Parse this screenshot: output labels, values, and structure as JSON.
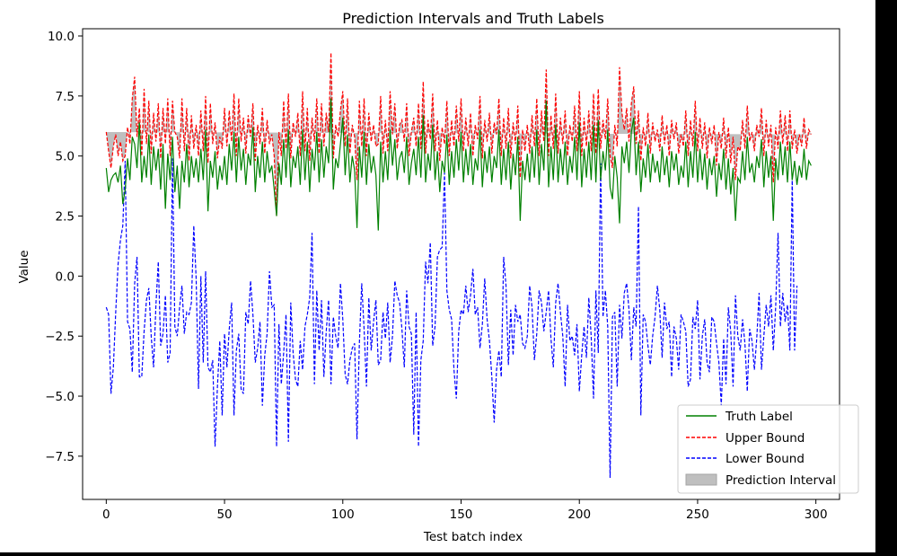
{
  "chart_data": {
    "type": "line",
    "title": "Prediction Intervals and Truth Labels",
    "xlabel": "Test batch index",
    "ylabel": "Value",
    "xlim": [
      -10,
      310
    ],
    "ylim": [
      -9.3,
      10.3
    ],
    "xticks": [
      0,
      50,
      100,
      150,
      200,
      250,
      300
    ],
    "xtick_labels": [
      "0",
      "50",
      "100",
      "150",
      "200",
      "250",
      "300"
    ],
    "yticks": [
      10.0,
      7.5,
      5.0,
      2.5,
      0.0,
      -2.5,
      -5.0,
      -7.5
    ],
    "ytick_labels": [
      "10.0",
      "7.5",
      "5.0",
      "2.5",
      "0.0",
      "−2.5",
      "−5.0",
      "−7.5"
    ],
    "grid": false,
    "legend_placement": "bottom-right",
    "n_points": 300,
    "x_start": 0,
    "x_step": 1,
    "series": [
      {
        "name": "Truth Label",
        "color": "#008000",
        "style": "solid",
        "values": [
          4.5,
          3.5,
          4.0,
          4.2,
          4.3,
          3.9,
          4.6,
          3.0,
          3.6,
          4.9,
          4.0,
          5.8,
          5.5,
          4.5,
          6.4,
          3.9,
          5.0,
          4.1,
          5.9,
          3.8,
          5.4,
          4.4,
          5.3,
          3.6,
          5.5,
          2.8,
          5.1,
          4.0,
          5.8,
          3.5,
          4.6,
          2.8,
          4.8,
          3.9,
          5.5,
          3.7,
          5.0,
          4.1,
          4.9,
          3.9,
          5.3,
          4.0,
          6.1,
          2.7,
          4.8,
          4.1,
          5.2,
          3.6,
          4.6,
          4.0,
          5.0,
          3.8,
          5.5,
          4.4,
          6.0,
          3.9,
          5.8,
          4.4,
          5.3,
          3.8,
          5.1,
          4.6,
          6.2,
          3.5,
          5.0,
          4.1,
          5.6,
          3.9,
          5.2,
          4.3,
          4.6,
          3.6,
          2.5,
          4.7,
          3.8,
          5.7,
          4.1,
          6.1,
          3.7,
          5.0,
          4.5,
          5.4,
          3.8,
          6.1,
          4.0,
          5.6,
          3.5,
          5.3,
          4.4,
          6.0,
          3.9,
          5.7,
          4.1,
          5.4,
          4.7,
          7.4,
          3.6,
          4.9,
          4.5,
          5.5,
          6.6,
          4.2,
          5.9,
          3.9,
          5.0,
          4.4,
          2.0,
          5.4,
          4.1,
          6.0,
          3.8,
          5.5,
          4.3,
          5.0,
          4.2,
          1.9,
          5.6,
          3.9,
          5.2,
          4.0,
          6.1,
          4.6,
          5.7,
          4.0,
          4.9,
          5.2,
          4.3,
          5.8,
          3.8,
          4.7,
          5.3,
          4.2,
          5.8,
          4.1,
          6.7,
          3.9,
          5.1,
          4.4,
          6.3,
          4.0,
          5.2,
          3.5,
          4.8,
          4.3,
          5.9,
          3.8,
          5.2,
          4.1,
          5.7,
          4.4,
          6.0,
          3.9,
          5.3,
          4.2,
          5.5,
          3.8,
          4.9,
          4.4,
          6.1,
          3.7,
          5.2,
          4.3,
          5.4,
          3.9,
          5.0,
          4.5,
          6.1,
          3.8,
          5.3,
          4.0,
          5.6,
          3.6,
          5.1,
          4.2,
          5.8,
          2.3,
          4.8,
          4.0,
          5.1,
          3.9,
          5.4,
          4.1,
          6.1,
          3.8,
          5.5,
          4.4,
          7.3,
          3.7,
          5.4,
          4.0,
          6.3,
          3.9,
          5.3,
          4.2,
          5.6,
          3.8,
          5.0,
          4.3,
          5.8,
          4.0,
          6.4,
          3.7,
          5.3,
          4.1,
          5.6,
          4.0,
          6.3,
          3.9,
          6.5,
          4.0,
          5.2,
          4.4,
          6.1,
          3.7,
          3.2,
          5.0,
          4.1,
          2.2,
          5.4,
          4.7,
          5.6,
          4.3,
          6.0,
          6.6,
          4.2,
          5.6,
          3.5,
          4.9,
          4.1,
          5.5,
          3.9,
          5.1,
          4.3,
          4.8,
          3.9,
          5.4,
          4.2,
          5.0,
          3.7,
          5.2,
          4.4,
          5.1,
          3.8,
          4.6,
          4.1,
          5.6,
          3.7,
          5.2,
          4.1,
          6.0,
          3.9,
          5.3,
          4.0,
          5.1,
          3.6,
          4.9,
          4.2,
          5.0,
          3.3,
          4.7,
          4.0,
          5.3,
          3.6,
          4.9,
          3.4,
          4.5,
          2.3,
          4.1,
          3.9,
          5.2,
          4.0,
          5.8,
          4.3,
          4.7,
          3.9,
          5.0,
          4.5,
          5.7,
          3.7,
          5.2,
          4.1,
          5.0,
          2.3,
          4.9,
          4.0,
          5.6,
          4.2,
          5.4,
          3.9,
          5.6,
          4.0,
          4.8,
          3.8,
          4.6,
          4.1,
          5.3,
          4.0,
          4.8,
          4.6
        ]
      },
      {
        "name": "Upper Bound",
        "color": "#ff0000",
        "style": "dashed",
        "values": [
          6.0,
          5.2,
          4.5,
          5.4,
          5.9,
          5.0,
          5.6,
          4.8,
          5.0,
          6.2,
          5.5,
          7.4,
          8.3,
          5.8,
          7.0,
          5.0,
          7.8,
          5.5,
          7.3,
          5.1,
          6.8,
          5.6,
          7.2,
          4.9,
          7.0,
          5.5,
          7.4,
          5.0,
          7.3,
          6.0,
          5.8,
          4.9,
          7.4,
          5.2,
          7.0,
          4.8,
          6.7,
          5.3,
          6.3,
          5.0,
          6.9,
          5.2,
          7.5,
          4.7,
          7.2,
          5.5,
          6.4,
          4.9,
          5.8,
          5.3,
          7.0,
          5.4,
          6.9,
          5.6,
          7.6,
          5.0,
          7.4,
          5.6,
          6.6,
          5.1,
          6.7,
          5.8,
          7.2,
          4.8,
          6.3,
          5.5,
          7.0,
          5.1,
          6.5,
          5.5,
          5.9,
          5.0,
          2.5,
          6.0,
          5.0,
          7.3,
          5.3,
          7.6,
          4.9,
          6.4,
          5.8,
          6.8,
          5.0,
          7.7,
          5.2,
          7.0,
          4.8,
          6.6,
          5.6,
          7.4,
          5.1,
          7.2,
          5.4,
          6.8,
          6.0,
          9.3,
          4.9,
          6.3,
          5.8,
          6.9,
          7.7,
          5.4,
          7.4,
          5.1,
          6.3,
          5.8,
          4.0,
          7.3,
          5.4,
          7.4,
          5.0,
          6.8,
          5.6,
          6.3,
          5.4,
          5.5,
          7.5,
          5.1,
          6.5,
          5.2,
          7.7,
          5.9,
          7.2,
          5.3,
          6.3,
          6.5,
          5.6,
          7.2,
          5.0,
          6.0,
          6.6,
          5.4,
          7.2,
          5.3,
          8.1,
          5.1,
          6.5,
          5.7,
          7.6,
          5.2,
          6.5,
          4.8,
          6.2,
          5.5,
          7.3,
          5.0,
          6.5,
          5.4,
          7.1,
          5.6,
          7.4,
          5.2,
          6.6,
          5.4,
          6.8,
          5.0,
          6.3,
          5.7,
          7.5,
          4.9,
          6.5,
          5.6,
          6.8,
          5.1,
          6.4,
          5.9,
          7.4,
          5.0,
          6.6,
          5.3,
          7.0,
          4.9,
          6.4,
          5.5,
          7.1,
          4.1,
          6.1,
          5.2,
          6.3,
          5.1,
          6.7,
          5.4,
          7.4,
          5.0,
          6.9,
          5.6,
          8.6,
          5.0,
          6.7,
          5.3,
          7.6,
          5.1,
          6.6,
          5.5,
          6.9,
          5.0,
          6.3,
          5.6,
          7.1,
          5.2,
          7.7,
          5.0,
          6.6,
          5.4,
          6.9,
          5.2,
          7.6,
          5.1,
          7.8,
          5.3,
          6.5,
          5.7,
          7.4,
          5.0,
          4.5,
          6.3,
          5.4,
          8.7,
          6.8,
          6.1,
          7.0,
          5.6,
          7.2,
          7.9,
          5.5,
          6.9,
          4.8,
          6.2,
          5.4,
          6.8,
          5.1,
          6.4,
          5.6,
          6.1,
          5.2,
          6.7,
          5.5,
          6.3,
          5.0,
          6.5,
          5.7,
          6.4,
          5.1,
          5.9,
          5.4,
          6.9,
          5.0,
          6.5,
          5.4,
          7.3,
          5.2,
          6.6,
          5.3,
          6.4,
          4.9,
          6.2,
          5.5,
          6.3,
          4.6,
          6.0,
          5.3,
          6.6,
          4.9,
          6.2,
          4.7,
          5.8,
          4.0,
          5.4,
          5.2,
          6.5,
          5.3,
          7.1,
          5.6,
          6.0,
          5.2,
          6.3,
          5.8,
          7.0,
          5.0,
          6.5,
          5.4,
          6.3,
          3.9,
          6.2,
          5.3,
          6.9,
          5.5,
          6.7,
          5.2,
          6.9,
          5.3,
          6.1,
          5.1,
          5.9,
          5.4,
          6.6,
          5.3,
          6.1,
          5.9
        ]
      },
      {
        "name": "Lower Bound",
        "color": "#0000ff",
        "style": "dashed",
        "values": [
          -1.3,
          -1.6,
          -4.9,
          -3.8,
          -1.5,
          0.5,
          1.5,
          2.1,
          4.8,
          -1.9,
          -2.2,
          -4.0,
          -0.3,
          0.8,
          -4.2,
          -4.2,
          -2.3,
          -1.0,
          -0.5,
          -2.5,
          -3.8,
          -1.2,
          0.6,
          -2.9,
          -2.4,
          -0.8,
          -3.6,
          -3.2,
          4.9,
          -2.1,
          -2.5,
          -1.3,
          -0.4,
          -2.4,
          -1.5,
          -1.6,
          -1.1,
          2.1,
          -0.1,
          -4.7,
          0.0,
          -3.6,
          0.2,
          -3.8,
          -4.0,
          -3.5,
          -7.1,
          -4.6,
          -2.7,
          -5.8,
          -2.4,
          -3.8,
          -2.2,
          -1.1,
          -5.8,
          -3.1,
          -2.4,
          -4.7,
          -4.9,
          -1.5,
          -2.0,
          -0.2,
          -1.6,
          -3.6,
          -3.0,
          -1.9,
          -5.4,
          -3.3,
          -2.4,
          0.2,
          -1.3,
          -1.2,
          -7.1,
          -2.0,
          -4.5,
          -3.2,
          -1.6,
          -6.9,
          -1.1,
          -3.2,
          -4.3,
          -4.6,
          -2.7,
          -3.9,
          -2.1,
          -1.6,
          -0.9,
          1.8,
          -4.5,
          -0.6,
          -3.1,
          -1.0,
          -4.2,
          -2.3,
          -1.0,
          -4.5,
          -1.7,
          -2.5,
          -3.0,
          -0.3,
          -1.8,
          -4.1,
          -4.5,
          -3.5,
          -3.0,
          -2.8,
          -6.8,
          -2.8,
          -0.3,
          -2.2,
          -4.6,
          -0.9,
          -3.1,
          -1.9,
          -1.0,
          -3.7,
          -3.5,
          -1.5,
          -2.6,
          -1.1,
          -3.6,
          -2.5,
          -0.2,
          -0.8,
          -1.1,
          -2.2,
          -3.8,
          -0.6,
          -2.1,
          -2.4,
          -6.6,
          -1.5,
          -7.1,
          -3.5,
          -2.7,
          0.6,
          -0.3,
          1.4,
          -2.9,
          -2.1,
          0.8,
          1.1,
          1.2,
          4.3,
          -0.6,
          -1.4,
          -1.8,
          -3.9,
          -5.1,
          -2.3,
          -1.4,
          -1.6,
          -0.4,
          -1.5,
          -0.8,
          0.3,
          -1.6,
          -1.3,
          -3.0,
          -2.0,
          -0.1,
          -1.8,
          -2.7,
          -4.2,
          -6.1,
          -3.9,
          -3.1,
          -4.2,
          0.8,
          -0.4,
          -3.7,
          -1.4,
          -3.3,
          -1.2,
          -1.9,
          -1.6,
          -2.8,
          -3.0,
          -2.5,
          -0.4,
          -1.3,
          -3.5,
          -2.4,
          -0.6,
          -1.1,
          -2.3,
          -1.5,
          -0.6,
          -2.6,
          -3.8,
          -1.1,
          -0.3,
          -1.5,
          -2.5,
          -4.6,
          -1.2,
          -2.7,
          -2.5,
          -3.3,
          -2.0,
          -4.8,
          -3.3,
          -2.1,
          -3.4,
          -0.9,
          -2.5,
          -5.1,
          -0.6,
          -3.2,
          4.7,
          -1.7,
          -0.6,
          -2.1,
          -8.4,
          -1.7,
          -1.5,
          -4.6,
          -1.2,
          -2.6,
          -0.7,
          -0.3,
          -1.4,
          -3.5,
          -1.3,
          -2.1,
          2.9,
          -5.8,
          -1.6,
          -1.9,
          -2.9,
          -3.7,
          -2.5,
          -1.7,
          -0.4,
          -1.4,
          -3.4,
          -1.1,
          -2.2,
          -1.9,
          -4.2,
          -2.1,
          -2.6,
          -3.9,
          -1.6,
          -1.9,
          -2.3,
          -4.6,
          -4.3,
          -1.7,
          -2.2,
          -1.0,
          -4.3,
          -2.5,
          -1.8,
          -3.6,
          -4.0,
          -1.7,
          -1.9,
          -2.8,
          -3.6,
          -5.4,
          -2.6,
          -4.5,
          -1.3,
          -2.3,
          -4.6,
          -0.8,
          -2.5,
          -3.1,
          -1.8,
          -2.8,
          -4.8,
          -2.2,
          -2.7,
          -3.9,
          -2.6,
          -0.7,
          -3.9,
          -2.5,
          -1.2,
          -2.1,
          -0.8,
          -3.1,
          -1.3,
          1.8,
          -2.1,
          -0.7,
          -1.9,
          -1.2,
          -3.1,
          4.1,
          -3.1,
          -0.4
        ]
      },
      {
        "name": "Prediction Interval",
        "color": "#bfbfbf",
        "style": "fill"
      }
    ],
    "colors": {
      "truth": "#008000",
      "upper": "#ff0000",
      "lower": "#0000ff",
      "interval_fill": "#bfbfbf",
      "background": "#000000",
      "figure_bg": "#ffffff"
    }
  }
}
